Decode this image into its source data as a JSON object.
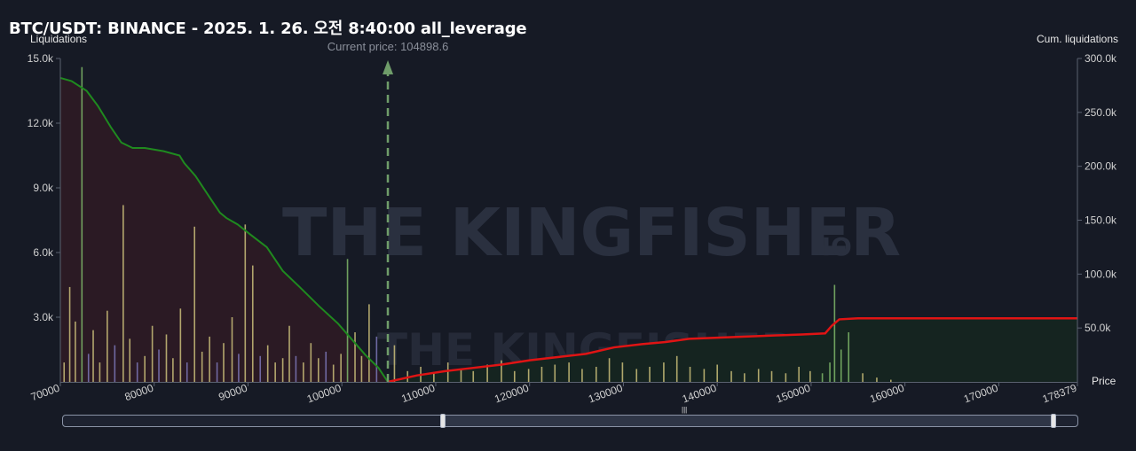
{
  "title": "BTC/USDT: BINANCE - 2025. 1. 26. 오전 8:40:00 all_leverage",
  "y_left_label": "Liquidations",
  "y_right_label": "Cum. liquidations",
  "x_label": "Price",
  "current_price_label": "Current price: 104898.6",
  "watermark_text": "THE KINGFISHER",
  "watermark_suffix": ".IO",
  "colors": {
    "background": "#161a25",
    "long_cum_line": "#1f8a1f",
    "short_cum_line": "#e01414",
    "long_fill": "#2b1a24",
    "short_fill": "#152420",
    "bar_yellow": "#cbbf7a",
    "bar_purple": "#7d78b8",
    "bar_green": "#7fb86a",
    "current_price_arrow": "#6f9d6a"
  },
  "chart_data": {
    "type": "bar",
    "x_range": [
      70000,
      178379
    ],
    "current_price": 104898.6,
    "y_left": {
      "label": "Liquidations",
      "range": [
        0,
        15000
      ],
      "ticks": [
        "3.0k",
        "6.0k",
        "9.0k",
        "12.0k",
        "15.0k"
      ],
      "tick_values": [
        3000,
        6000,
        9000,
        12000,
        15000
      ]
    },
    "y_right": {
      "label": "Cum. liquidations",
      "range": [
        0,
        300000
      ],
      "ticks": [
        "50.0k",
        "100.0k",
        "150.0k",
        "200.0k",
        "250.0k",
        "300.0k"
      ],
      "tick_values": [
        50000,
        100000,
        150000,
        200000,
        250000,
        300000
      ]
    },
    "x_ticks": [
      "70000",
      "80000",
      "90000",
      "100000",
      "110000",
      "120000",
      "130000",
      "140000",
      "150000",
      "160000",
      "170000",
      "178379"
    ],
    "x_tick_values": [
      70000,
      80000,
      90000,
      100000,
      110000,
      120000,
      130000,
      140000,
      150000,
      160000,
      170000,
      178379
    ],
    "series": [
      {
        "name": "Cum. long liquidations",
        "kind": "line",
        "x": [
          70000,
          71200,
          72800,
          74000,
          75400,
          76500,
          77700,
          79000,
          81000,
          82700,
          83200,
          84400,
          86000,
          87000,
          87700,
          88900,
          90200,
          92000,
          93700,
          95500,
          97600,
          99600,
          101000,
          102500,
          103900,
          104898.6
        ],
        "y": [
          282000,
          279000,
          270000,
          256000,
          236000,
          222000,
          217000,
          217000,
          214000,
          210000,
          203000,
          191000,
          170000,
          157000,
          152000,
          146000,
          137000,
          125000,
          103000,
          88000,
          70000,
          54000,
          40000,
          25000,
          13000,
          0
        ]
      },
      {
        "name": "Cum. short liquidations",
        "kind": "line",
        "x": [
          104898.6,
          108000,
          111000,
          114000,
          117000,
          120000,
          123000,
          126000,
          129000,
          132000,
          134500,
          137000,
          140000,
          143000,
          146000,
          149000,
          151500,
          152200,
          153000,
          155000,
          160000,
          165000,
          170000,
          178379
        ],
        "y": [
          0,
          6000,
          10000,
          13000,
          16000,
          20000,
          23000,
          26000,
          32000,
          35000,
          37000,
          40000,
          41000,
          42000,
          43000,
          44000,
          45000,
          52000,
          58000,
          59000,
          59000,
          59000,
          59000,
          59000
        ]
      },
      {
        "name": "Liquidations",
        "kind": "bar",
        "x": [
          70400,
          71000,
          71600,
          72300,
          73000,
          73500,
          74200,
          75000,
          75800,
          76700,
          77400,
          78200,
          79000,
          79800,
          80500,
          81300,
          82000,
          82800,
          83500,
          84300,
          85100,
          85900,
          86700,
          87400,
          88300,
          89000,
          89700,
          90500,
          91300,
          92100,
          92900,
          93700,
          94400,
          95100,
          95900,
          96700,
          97500,
          98300,
          99100,
          99900,
          100600,
          101400,
          102100,
          102900,
          103700,
          105600,
          107000,
          108400,
          109800,
          111300,
          112700,
          114000,
          115500,
          117000,
          118400,
          119900,
          121300,
          122700,
          124200,
          125600,
          127100,
          128500,
          129900,
          131400,
          132800,
          134300,
          135700,
          137100,
          138600,
          140000,
          141500,
          142900,
          144400,
          145800,
          147300,
          148700,
          149900,
          151200,
          152000,
          152500,
          153200,
          154000,
          155500,
          157000,
          158500
        ],
        "y": [
          900,
          4400,
          2800,
          14600,
          1300,
          2400,
          900,
          3300,
          1700,
          8200,
          2000,
          900,
          1200,
          2600,
          1500,
          2200,
          1100,
          3400,
          900,
          7200,
          1400,
          2100,
          900,
          1800,
          3000,
          1300,
          7300,
          5400,
          1200,
          1700,
          900,
          1100,
          2600,
          1200,
          900,
          1800,
          1100,
          1400,
          800,
          1300,
          5700,
          2300,
          1200,
          3600,
          2100,
          1700,
          500,
          700,
          400,
          900,
          600,
          500,
          800,
          1000,
          500,
          600,
          700,
          800,
          900,
          600,
          700,
          1100,
          900,
          600,
          700,
          900,
          1200,
          700,
          600,
          800,
          500,
          400,
          600,
          500,
          400,
          700,
          500,
          400,
          900,
          4500,
          1500,
          2300,
          400,
          200,
          100
        ],
        "color_groups": [
          "yellow",
          "yellow",
          "yellow",
          "green",
          "purple",
          "yellow",
          "yellow",
          "yellow",
          "purple",
          "yellow",
          "yellow",
          "purple",
          "yellow",
          "yellow",
          "purple",
          "yellow",
          "yellow",
          "yellow",
          "purple",
          "yellow",
          "yellow",
          "yellow",
          "purple",
          "yellow",
          "yellow",
          "purple",
          "yellow",
          "yellow",
          "purple",
          "yellow",
          "yellow",
          "yellow",
          "yellow",
          "purple",
          "yellow",
          "yellow",
          "yellow",
          "purple",
          "yellow",
          "yellow",
          "green",
          "yellow",
          "yellow",
          "yellow",
          "purple",
          "yellow",
          "yellow",
          "yellow",
          "yellow",
          "yellow",
          "yellow",
          "yellow",
          "yellow",
          "yellow",
          "yellow",
          "yellow",
          "yellow",
          "yellow",
          "yellow",
          "yellow",
          "yellow",
          "yellow",
          "yellow",
          "yellow",
          "yellow",
          "yellow",
          "yellow",
          "yellow",
          "yellow",
          "yellow",
          "yellow",
          "yellow",
          "yellow",
          "yellow",
          "yellow",
          "yellow",
          "yellow",
          "green",
          "green",
          "green",
          "green",
          "green",
          "yellow",
          "yellow",
          "yellow"
        ]
      }
    ],
    "grid": false,
    "legend": "none"
  },
  "scroller": {
    "grip_glyph": "|||"
  }
}
